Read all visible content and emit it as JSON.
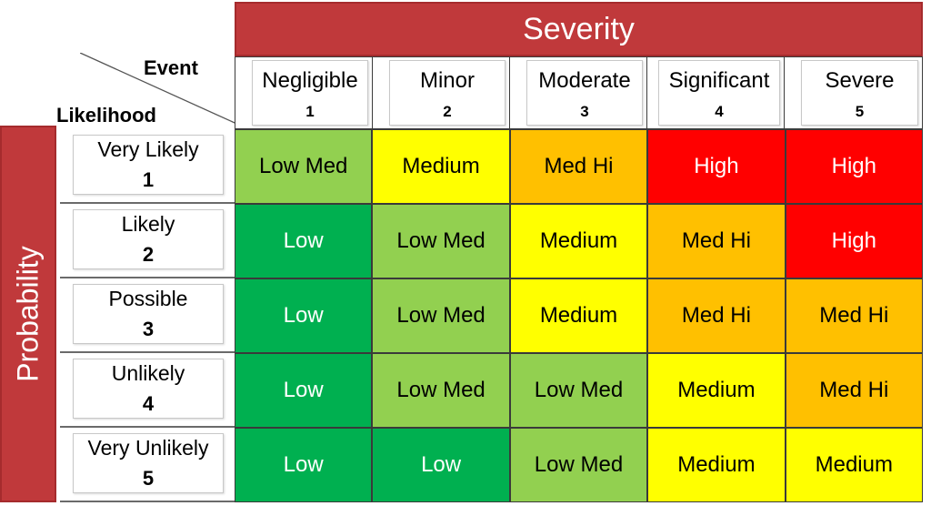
{
  "severity_title": "Severity",
  "probability_title": "Probability",
  "corner": {
    "event_label": "Event",
    "likelihood_label": "Likelihood"
  },
  "severity_levels": [
    {
      "name": "Negligible",
      "num": "1"
    },
    {
      "name": "Minor",
      "num": "2"
    },
    {
      "name": "Moderate",
      "num": "3"
    },
    {
      "name": "Significant",
      "num": "4"
    },
    {
      "name": "Severe",
      "num": "5"
    }
  ],
  "likelihood_levels": [
    {
      "name": "Very Likely",
      "num": "1"
    },
    {
      "name": "Likely",
      "num": "2"
    },
    {
      "name": "Possible",
      "num": "3"
    },
    {
      "name": "Unlikely",
      "num": "4"
    },
    {
      "name": "Very Unlikely",
      "num": "5"
    }
  ],
  "matrix": [
    [
      "Low Med",
      "Medium",
      "Med Hi",
      "High",
      "High"
    ],
    [
      "Low",
      "Low Med",
      "Medium",
      "Med Hi",
      "High"
    ],
    [
      "Low",
      "Low Med",
      "Medium",
      "Med Hi",
      "Med Hi"
    ],
    [
      "Low",
      "Low Med",
      "Low Med",
      "Medium",
      "Med Hi"
    ],
    [
      "Low",
      "Low",
      "Low Med",
      "Medium",
      "Medium"
    ]
  ],
  "level_colors": {
    "Low": {
      "bg": "#00b050",
      "fg": "#ffffff"
    },
    "Low Med": {
      "bg": "#92d050",
      "fg": "#000000"
    },
    "Medium": {
      "bg": "#ffff00",
      "fg": "#000000"
    },
    "Med Hi": {
      "bg": "#ffc000",
      "fg": "#000000"
    },
    "High": {
      "bg": "#ff0000",
      "fg": "#ffffff"
    }
  },
  "banner_color": "#c0393b"
}
